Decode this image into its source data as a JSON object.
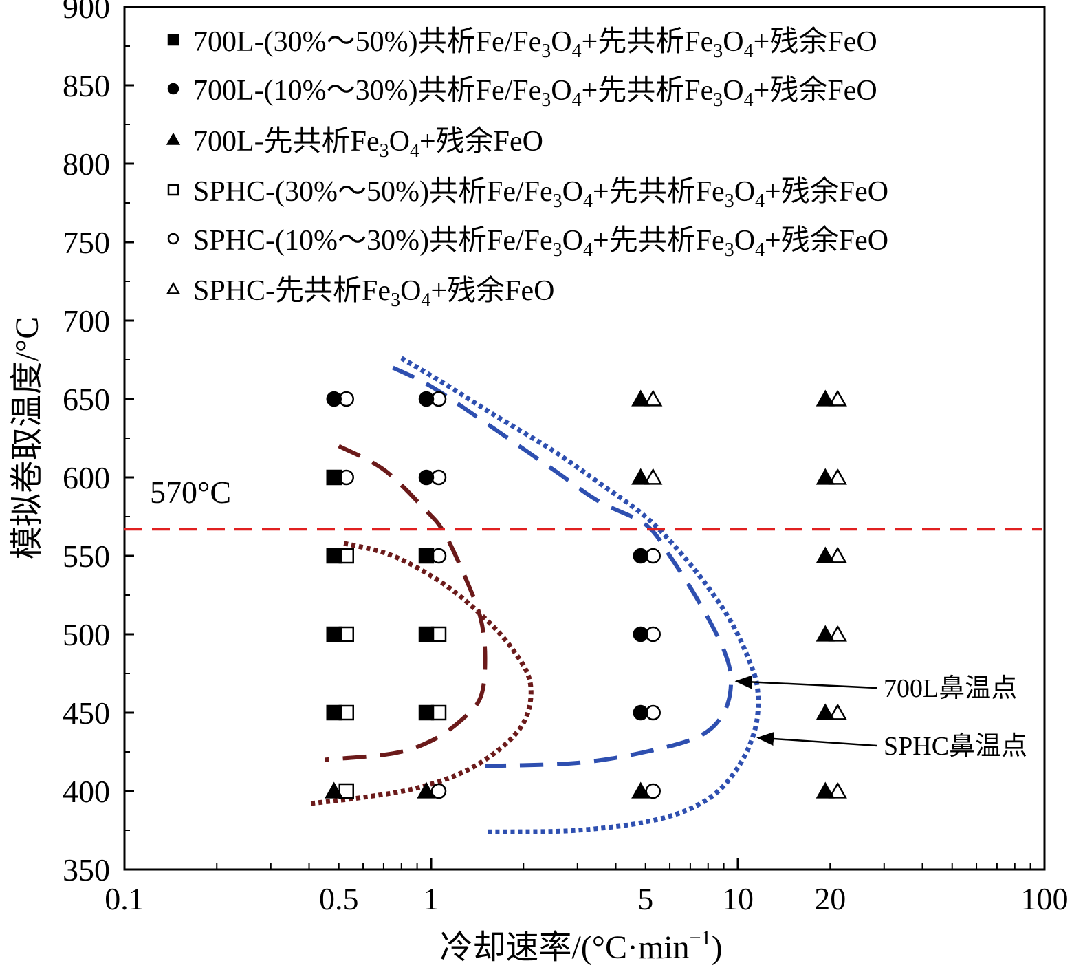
{
  "chart_data": {
    "type": "scatter",
    "xlabel": "冷却速率/(°C·min",
    "xlabel_sup": "−1",
    "xlabel_close": ")",
    "ylabel": "模拟卷取温度/°C",
    "xscale": "log",
    "xlim": [
      0.1,
      100
    ],
    "ylim": [
      350,
      900
    ],
    "x_ticks": [
      {
        "value": 0.1,
        "label": "0.1"
      },
      {
        "value": 0.5,
        "label": "0.5"
      },
      {
        "value": 1,
        "label": "1"
      },
      {
        "value": 5,
        "label": "5"
      },
      {
        "value": 10,
        "label": "10"
      },
      {
        "value": 20,
        "label": "20"
      },
      {
        "value": 100,
        "label": "100"
      }
    ],
    "y_ticks": [
      {
        "value": 350,
        "label": "350"
      },
      {
        "value": 400,
        "label": "400"
      },
      {
        "value": 450,
        "label": "450"
      },
      {
        "value": 500,
        "label": "500"
      },
      {
        "value": 550,
        "label": "550"
      },
      {
        "value": 600,
        "label": "600"
      },
      {
        "value": 650,
        "label": "650"
      },
      {
        "value": 700,
        "label": "700"
      },
      {
        "value": 750,
        "label": "750"
      },
      {
        "value": 800,
        "label": "800"
      },
      {
        "value": 850,
        "label": "850"
      },
      {
        "value": 900,
        "label": "900"
      }
    ],
    "legend_position": "top-left",
    "series": [
      {
        "name": "700L-(30%～50%)共析Fe/Fe3O4+先共析Fe3O4+残余FeO",
        "legend": {
          "pre": "700L-(30%～50%)共析Fe/Fe",
          "s1": "3",
          "mid1": "O",
          "s2": "4",
          "mid2": "+先共析Fe",
          "s3": "3",
          "mid3": "O",
          "s4": "4",
          "post": "+残余FeO"
        },
        "marker": "square",
        "filled": true,
        "points": [
          [
            0.5,
            600
          ],
          [
            0.5,
            550
          ],
          [
            0.5,
            500
          ],
          [
            0.5,
            450
          ],
          [
            1,
            550
          ],
          [
            1,
            500
          ],
          [
            1,
            450
          ]
        ]
      },
      {
        "name": "700L-(10%～30%)共析Fe/Fe3O4+先共析Fe3O4+残余FeO",
        "legend": {
          "pre": "700L-(10%～30%)共析Fe/Fe",
          "s1": "3",
          "mid1": "O",
          "s2": "4",
          "mid2": "+先共析Fe",
          "s3": "3",
          "mid3": "O",
          "s4": "4",
          "post": "+残余FeO"
        },
        "marker": "circle",
        "filled": true,
        "points": [
          [
            0.5,
            650
          ],
          [
            1,
            650
          ],
          [
            1,
            600
          ],
          [
            5,
            550
          ],
          [
            5,
            500
          ],
          [
            5,
            450
          ]
        ]
      },
      {
        "name": "700L-先共析Fe3O4+残余FeO",
        "legend": {
          "pre": "700L-先共析Fe",
          "s1": "3",
          "mid1": "O",
          "s2": "4",
          "post": "+残余FeO"
        },
        "marker": "triangle",
        "filled": true,
        "points": [
          [
            0.5,
            400
          ],
          [
            1,
            400
          ],
          [
            5,
            650
          ],
          [
            5,
            600
          ],
          [
            5,
            400
          ],
          [
            20,
            650
          ],
          [
            20,
            600
          ],
          [
            20,
            550
          ],
          [
            20,
            500
          ],
          [
            20,
            450
          ],
          [
            20,
            400
          ]
        ]
      },
      {
        "name": "SPHC-(30%～50%)共析Fe/Fe3O4+先共析Fe3O4+残余FeO",
        "legend": {
          "pre": "SPHC-(30%～50%)共析Fe/Fe",
          "s1": "3",
          "mid1": "O",
          "s2": "4",
          "mid2": "+先共析Fe",
          "s3": "3",
          "mid3": "O",
          "s4": "4",
          "post": "+残余FeO"
        },
        "marker": "square",
        "filled": false,
        "points": [
          [
            0.5,
            550
          ],
          [
            0.5,
            500
          ],
          [
            0.5,
            450
          ],
          [
            0.5,
            400
          ],
          [
            1,
            500
          ],
          [
            1,
            450
          ]
        ]
      },
      {
        "name": "SPHC-(10%～30%)共析Fe/Fe3O4+先共析Fe3O4+残余FeO",
        "legend": {
          "pre": "SPHC-(10%～30%)共析Fe/Fe",
          "s1": "3",
          "mid1": "O",
          "s2": "4",
          "mid2": "+先共析Fe",
          "s3": "3",
          "mid3": "O",
          "s4": "4",
          "post": "+残余FeO"
        },
        "marker": "circle",
        "filled": false,
        "points": [
          [
            0.5,
            650
          ],
          [
            0.5,
            600
          ],
          [
            1,
            650
          ],
          [
            1,
            600
          ],
          [
            1,
            550
          ],
          [
            1,
            400
          ],
          [
            5,
            550
          ],
          [
            5,
            500
          ],
          [
            5,
            450
          ],
          [
            5,
            400
          ]
        ]
      },
      {
        "name": "SPHC-先共析Fe3O4+残余FeO",
        "legend": {
          "pre": "SPHC-先共析Fe",
          "s1": "3",
          "mid1": "O",
          "s2": "4",
          "post": "+残余FeO"
        },
        "marker": "triangle",
        "filled": false,
        "points": [
          [
            5,
            650
          ],
          [
            5,
            600
          ],
          [
            20,
            650
          ],
          [
            20,
            600
          ],
          [
            20,
            550
          ],
          [
            20,
            500
          ],
          [
            20,
            450
          ],
          [
            20,
            400
          ]
        ]
      }
    ],
    "curves": [
      {
        "id": "700L-blue-dashed",
        "color": "#2e4fb0",
        "style": "dashed",
        "points": [
          [
            0.75,
            670
          ],
          [
            1.0,
            658
          ],
          [
            1.5,
            635
          ],
          [
            2.5,
            605
          ],
          [
            3.5,
            585
          ],
          [
            5.0,
            570
          ],
          [
            6.0,
            550
          ],
          [
            7.5,
            520
          ],
          [
            9.0,
            490
          ],
          [
            9.5,
            470
          ],
          [
            9.0,
            450
          ],
          [
            7.5,
            435
          ],
          [
            5.0,
            425
          ],
          [
            3.0,
            418
          ],
          [
            1.5,
            416
          ]
        ]
      },
      {
        "id": "SPHC-blue-dotted",
        "color": "#2e4fb0",
        "style": "dotted",
        "points": [
          [
            0.8,
            676
          ],
          [
            1.1,
            660
          ],
          [
            1.6,
            640
          ],
          [
            2.5,
            617
          ],
          [
            3.5,
            597
          ],
          [
            5.0,
            575
          ],
          [
            6.5,
            552
          ],
          [
            8.0,
            530
          ],
          [
            9.5,
            508
          ],
          [
            10.8,
            485
          ],
          [
            11.6,
            465
          ],
          [
            11.4,
            440
          ],
          [
            10.0,
            415
          ],
          [
            8.0,
            395
          ],
          [
            5.5,
            382
          ],
          [
            3.0,
            375
          ],
          [
            1.5,
            374
          ]
        ]
      },
      {
        "id": "700L-brown-dashed",
        "color": "#6b1a1a",
        "style": "dashed",
        "points": [
          [
            0.5,
            620
          ],
          [
            0.7,
            605
          ],
          [
            0.95,
            580
          ],
          [
            1.1,
            565
          ],
          [
            1.3,
            535
          ],
          [
            1.45,
            510
          ],
          [
            1.5,
            485
          ],
          [
            1.45,
            460
          ],
          [
            1.25,
            445
          ],
          [
            1.0,
            432
          ],
          [
            0.75,
            424
          ],
          [
            0.45,
            420
          ]
        ]
      },
      {
        "id": "SPHC-brown-dotted",
        "color": "#6b1a1a",
        "style": "dotted",
        "points": [
          [
            0.52,
            558
          ],
          [
            0.75,
            550
          ],
          [
            1.1,
            532
          ],
          [
            1.5,
            510
          ],
          [
            1.85,
            490
          ],
          [
            2.1,
            470
          ],
          [
            2.05,
            448
          ],
          [
            1.75,
            430
          ],
          [
            1.3,
            413
          ],
          [
            0.9,
            402
          ],
          [
            0.6,
            396
          ],
          [
            0.4,
            392
          ]
        ]
      }
    ],
    "reference_line": {
      "y": 567,
      "label": "570°C",
      "color": "#e02020"
    },
    "annotations": [
      {
        "text": "700L鼻温点",
        "target": [
          9.6,
          470
        ]
      },
      {
        "text": "SPHC鼻温点",
        "target": [
          11.3,
          434
        ]
      }
    ]
  }
}
